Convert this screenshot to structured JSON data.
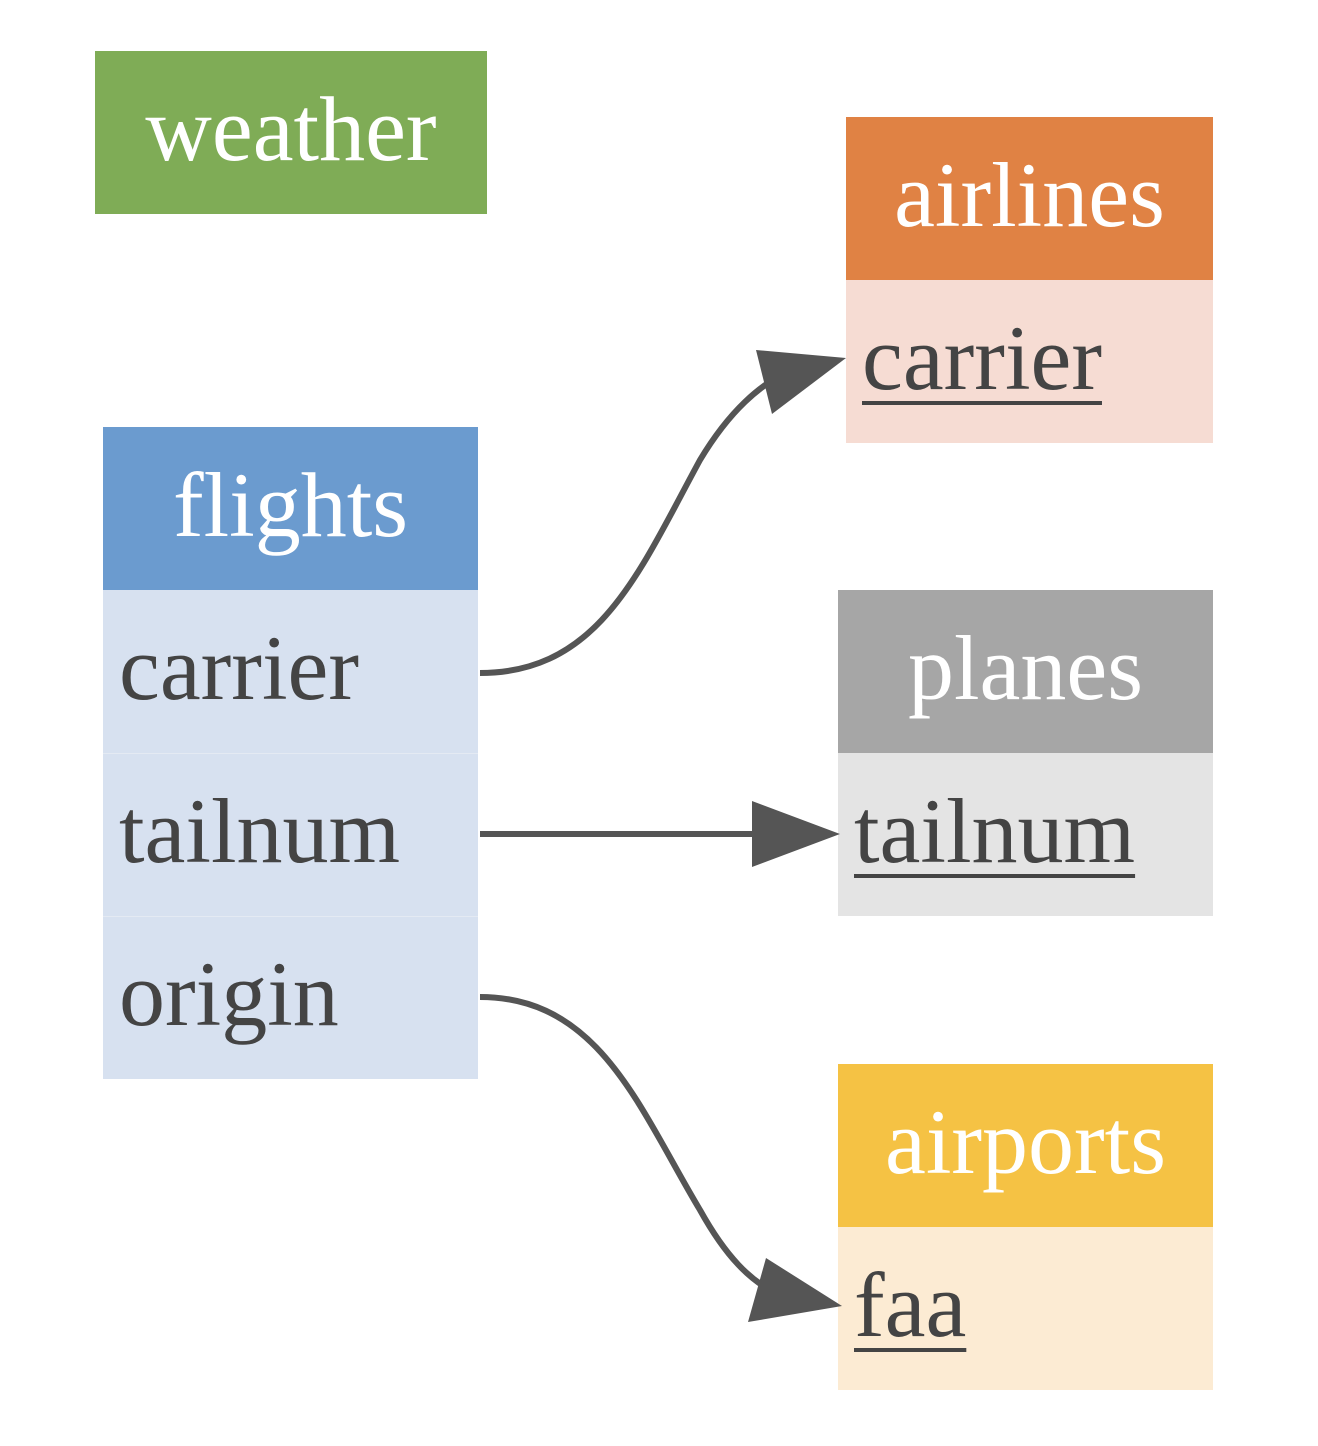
{
  "tables": {
    "weather": {
      "name": "weather",
      "header_color": "#7fac56",
      "fields": []
    },
    "airlines": {
      "name": "airlines",
      "header_color": "#e08244",
      "body_color": "#f6dcd3",
      "fields": [
        "carrier"
      ]
    },
    "flights": {
      "name": "flights",
      "header_color": "#6b9bcf",
      "body_color": "#d7e1f0",
      "fields": [
        "carrier",
        "tailnum",
        "origin"
      ]
    },
    "planes": {
      "name": "planes",
      "header_color": "#a6a6a6",
      "body_color": "#e4e4e4",
      "fields": [
        "tailnum"
      ]
    },
    "airports": {
      "name": "airports",
      "header_color": "#f5c244",
      "body_color": "#fcebd3",
      "fields": [
        "faa"
      ]
    }
  },
  "relations": [
    {
      "from": "flights.carrier",
      "to": "airlines.carrier"
    },
    {
      "from": "flights.tailnum",
      "to": "planes.tailnum"
    },
    {
      "from": "flights.origin",
      "to": "airports.faa"
    }
  ],
  "edge_color": "#555555"
}
